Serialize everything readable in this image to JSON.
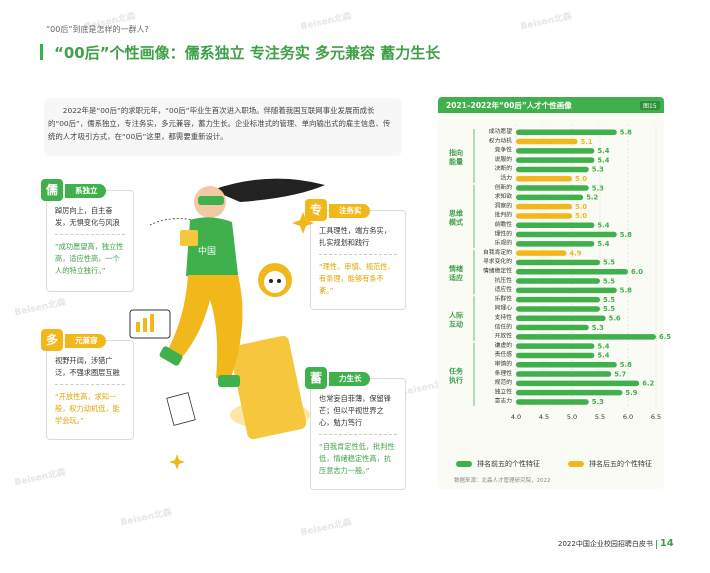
{
  "breadcrumb": "“00后”到底是怎样的一群人?",
  "page_title": "“00后”个性画像：儒系独立 专注务实 多元兼容 蓄力生长",
  "intro": "2022年是“00后”的求职元年，“00后”毕业生首次进入职场。伴随着我国互联网事业发展而成长的“00后”，儒系独立，专注务实，多元兼容，蓄力生长。企业标准式的管理、单向输出式的雇主信息、传统的人才吸引方式，在“00后”这里，都需要重新设计。",
  "watermark": "Beisen北森",
  "cards": {
    "ru": {
      "badge": "儒",
      "tag": "系独立",
      "desc": "踔厉向上，自主奋发，无惧变化与风浪",
      "quote": "“成功愿望高，独立性高，适应性高，一个人的特立独行。”"
    },
    "zhuan": {
      "badge": "专",
      "tag": "注务实",
      "desc": "工具理性，端方务实，扎实规划和践行",
      "quote": "“理性、审慎、规范性、有条理，能够有条不紊。”"
    },
    "duo": {
      "badge": "多",
      "tag": "元兼容",
      "desc": "视野开阔，涉猎广泛，不强求圈层互融",
      "quote": "“开放性高，求知一般，权力动机低，能学会玩。”"
    },
    "xu": {
      "badge": "蓄",
      "tag": "力生长",
      "desc": "也常妄自菲薄，保留锋芒；但以平视世界之心，勉力笃行",
      "quote": "“自我肯定性低，批判性低，情绪稳定性高，抗压意志力一般。”"
    }
  },
  "illustration_label": "中国",
  "colors": {
    "green": "#3fb04b",
    "yellow": "#f2b81b"
  },
  "chart_data": {
    "type": "bar",
    "orientation": "horizontal",
    "title": "2021–2022年“00后”人才个性画像",
    "figure_label": "图15",
    "xlim": [
      4.0,
      6.5
    ],
    "xticks": [
      "4.0",
      "4.5",
      "5.0",
      "5.5",
      "6.0",
      "6.5"
    ],
    "groups": [
      {
        "name": "指向能量",
        "items": [
          [
            "成功愿望",
            5.8,
            "top"
          ],
          [
            "权力动机",
            5.1,
            "bottom"
          ],
          [
            "竞争性",
            5.4,
            "top"
          ],
          [
            "说服的",
            5.4,
            "top"
          ],
          [
            "决断的",
            5.3,
            "top"
          ],
          [
            "活力",
            5.0,
            "bottom"
          ]
        ]
      },
      {
        "name": "思维模式",
        "items": [
          [
            "创新的",
            5.3,
            "top"
          ],
          [
            "求知欲",
            5.2,
            "top"
          ],
          [
            "洞察的",
            5.0,
            "bottom"
          ],
          [
            "批判的",
            5.0,
            "bottom"
          ],
          [
            "前瞻性",
            5.4,
            "top"
          ],
          [
            "理性的",
            5.8,
            "top"
          ],
          [
            "乐观的",
            5.4,
            "top"
          ]
        ]
      },
      {
        "name": "情绪适应",
        "items": [
          [
            "自我肯定的",
            4.9,
            "bottom"
          ],
          [
            "寻求变化的",
            5.5,
            "top"
          ],
          [
            "情绪稳定性",
            6.0,
            "top"
          ],
          [
            "抗压性",
            5.5,
            "top"
          ],
          [
            "适应性",
            5.8,
            "top"
          ]
        ]
      },
      {
        "name": "人际互动",
        "items": [
          [
            "乐群性",
            5.5,
            "top"
          ],
          [
            "同理心",
            5.5,
            "top"
          ],
          [
            "支持性",
            5.6,
            "top"
          ],
          [
            "信任的",
            5.3,
            "top"
          ],
          [
            "开放性",
            6.5,
            "top"
          ]
        ]
      },
      {
        "name": "任务执行",
        "items": [
          [
            "谦虚的",
            5.4,
            "top"
          ],
          [
            "责任感",
            5.4,
            "top"
          ],
          [
            "审慎的",
            5.8,
            "top"
          ],
          [
            "条理性",
            5.7,
            "top"
          ],
          [
            "规范的",
            6.2,
            "top"
          ],
          [
            "独立性",
            5.9,
            "top"
          ],
          [
            "意志力",
            5.3,
            "top"
          ]
        ]
      }
    ],
    "legend": {
      "top": "排名前五的个性特征",
      "bottom": "排名后五的个性特征"
    },
    "source": "数据来源：北森人才管理研究院，2022"
  },
  "footer": {
    "doc": "2022中国企业校园招聘白皮书",
    "page": "14"
  }
}
